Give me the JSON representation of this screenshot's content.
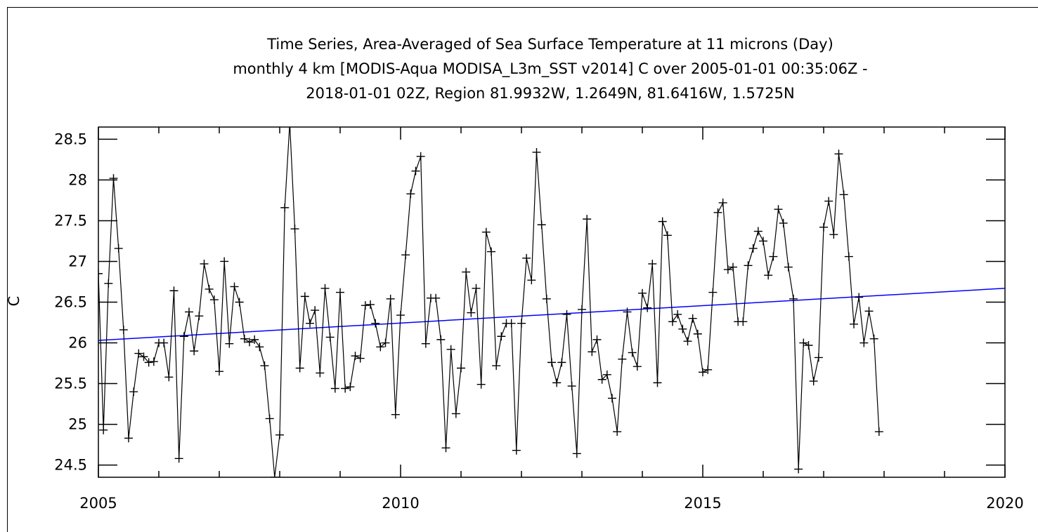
{
  "chart_data": {
    "type": "line",
    "title_lines": [
      "Time Series, Area-Averaged of Sea Surface Temperature at 11 microns (Day)",
      "monthly 4 km [MODIS-Aqua MODISA_L3m_SST v2014] C over 2005-01-01 00:35:06Z -",
      "2018-01-01 02Z, Region 81.9932W, 1.2649N, 81.6416W, 1.5725N"
    ],
    "xlabel": "",
    "ylabel": "C",
    "xlim": [
      2005,
      2020
    ],
    "ylim": [
      24.35,
      28.65
    ],
    "x_ticks": [
      2005,
      2010,
      2015,
      2020
    ],
    "x_tick_labels": [
      "2005",
      "2010",
      "2015",
      "2020"
    ],
    "y_ticks": [
      24.5,
      25,
      25.5,
      26,
      26.5,
      27,
      27.5,
      28,
      28.5
    ],
    "y_tick_labels": [
      "24.5",
      "25",
      "25.5",
      "26",
      "26.5",
      "27",
      "27.5",
      "28",
      "28.5"
    ],
    "grid": false,
    "colors": {
      "series": "#000000",
      "trend": "#0000ff",
      "axes": "#000000"
    },
    "series": [
      {
        "x_start": "2005-01",
        "step": "1 month",
        "marker": "plus",
        "values": [
          26.85,
          24.93,
          26.73,
          28.02,
          27.16,
          26.16,
          24.83,
          25.4,
          25.87,
          25.83,
          25.76,
          25.77,
          26.0,
          26.0,
          25.58,
          26.64,
          24.58,
          26.08,
          26.38,
          25.9,
          26.33,
          26.97,
          26.66,
          26.53,
          25.65,
          27.0,
          25.99,
          26.69,
          26.5,
          26.05,
          26.01,
          26.04,
          25.95,
          25.72,
          25.07,
          24.35,
          24.87,
          27.66,
          28.7,
          27.4,
          25.69,
          26.57,
          26.24,
          26.4,
          25.63,
          26.67,
          26.07,
          25.44,
          26.62,
          25.44,
          25.46,
          25.84,
          25.81,
          26.46,
          26.47,
          26.24,
          25.95,
          26.0,
          26.54,
          25.12,
          26.34,
          27.08,
          27.83,
          28.11,
          28.29,
          25.99,
          26.55,
          26.55,
          26.04,
          24.71,
          25.92,
          25.13,
          25.69,
          26.87,
          26.37,
          26.67,
          25.49,
          27.36,
          27.12,
          25.72,
          26.08,
          26.24,
          26.24,
          24.68,
          26.24,
          27.04,
          26.77,
          28.34,
          27.45,
          26.54,
          25.76,
          25.51,
          25.76,
          26.35,
          25.47,
          24.64,
          26.41,
          27.52,
          25.89,
          26.04,
          25.55,
          25.61,
          25.32,
          24.91,
          25.8,
          26.38,
          25.88,
          25.71,
          26.61,
          26.43,
          26.97,
          25.51,
          27.49,
          27.32,
          26.26,
          26.35,
          26.17,
          26.02,
          26.3,
          26.11,
          25.64,
          25.67,
          26.62,
          27.6,
          27.72,
          26.9,
          26.93,
          26.26,
          26.26,
          26.95,
          27.16,
          27.37,
          27.25,
          26.83,
          27.06,
          27.64,
          27.47,
          26.93,
          26.54,
          24.45,
          26.0,
          25.97,
          25.53,
          25.82,
          27.42,
          27.74,
          27.33,
          28.32,
          27.82,
          27.06,
          26.23,
          26.56,
          26.0,
          26.39,
          26.05,
          24.91
        ]
      }
    ],
    "trend_line": {
      "x": [
        2005,
        2020
      ],
      "y": [
        26.03,
        26.67
      ]
    }
  }
}
